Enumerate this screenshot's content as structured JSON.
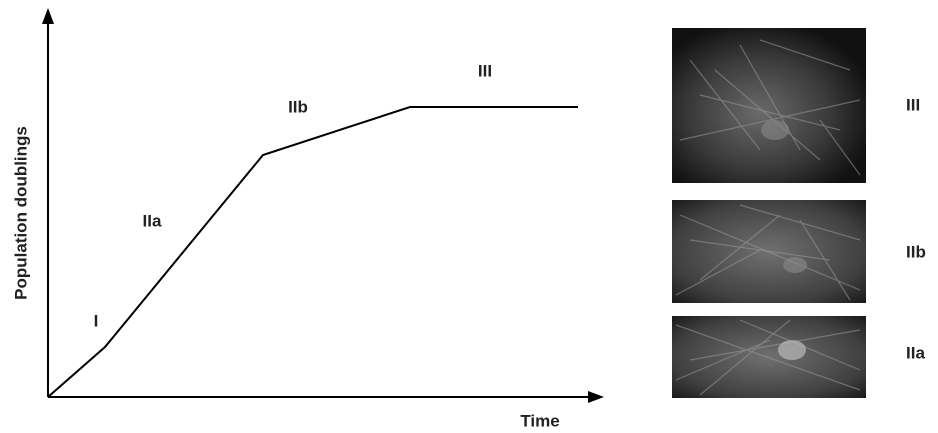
{
  "axes": {
    "y_label": "Population doublings",
    "x_label": "Time"
  },
  "phase_labels": [
    "I",
    "IIa",
    "IIb",
    "III"
  ],
  "image_labels": [
    "III",
    "IIb",
    "IIa"
  ]
}
